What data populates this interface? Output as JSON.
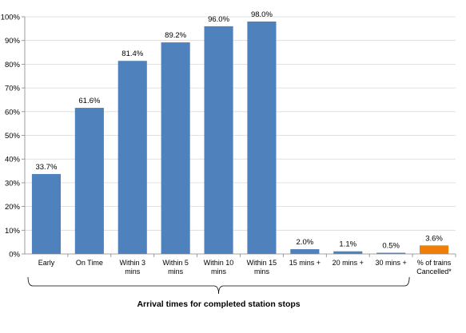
{
  "chart_data": {
    "type": "bar",
    "title": "",
    "ylabel": "",
    "xlabel": "Arrival times for completed station stops",
    "ylim": [
      0,
      100
    ],
    "yticks": [
      0,
      10,
      20,
      30,
      40,
      50,
      60,
      70,
      80,
      90,
      100
    ],
    "ytick_labels": [
      "0%",
      "10%",
      "20%",
      "30%",
      "40%",
      "50%",
      "60%",
      "70%",
      "80%",
      "90%",
      "100%"
    ],
    "grid": true,
    "categories": [
      [
        "Early"
      ],
      [
        "On Time"
      ],
      [
        "Within 3",
        "mins"
      ],
      [
        "Within 5",
        "mins"
      ],
      [
        "Within 10",
        "mins"
      ],
      [
        "Within 15",
        "mins"
      ],
      [
        "15 mins +"
      ],
      [
        "20 mins +"
      ],
      [
        "30 mins +"
      ],
      [
        "% of trains",
        "Cancelled*"
      ]
    ],
    "values": [
      33.7,
      61.6,
      81.4,
      89.2,
      96.0,
      98.0,
      2.0,
      1.1,
      0.5,
      3.6
    ],
    "data_labels": [
      "33.7%",
      "61.6%",
      "81.4%",
      "89.2%",
      "96.0%",
      "98.0%",
      "2.0%",
      "1.1%",
      "0.5%",
      "3.6%"
    ],
    "colors": [
      "#4F81BD",
      "#4F81BD",
      "#4F81BD",
      "#4F81BD",
      "#4F81BD",
      "#4F81BD",
      "#4F81BD",
      "#4F81BD",
      "#4F81BD",
      "#F07F09"
    ],
    "grid_color": "#D9D9D9",
    "bracket": {
      "from_category": 0,
      "to_category": 8
    }
  }
}
